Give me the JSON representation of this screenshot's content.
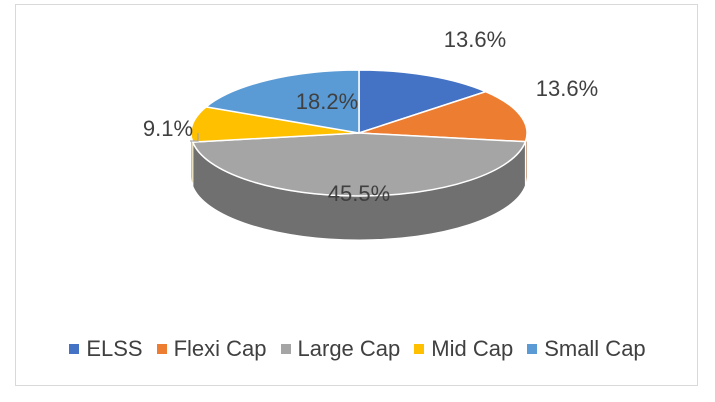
{
  "chart_data": {
    "type": "pie",
    "style": "3d",
    "title": "",
    "categories": [
      "ELSS",
      "Flexi Cap",
      "Large Cap",
      "Mid Cap",
      "Small Cap"
    ],
    "values": [
      13.6,
      13.6,
      45.5,
      9.1,
      18.2
    ],
    "labels": [
      "13.6%",
      "13.6%",
      "45.5%",
      "9.1%",
      "18.2%"
    ],
    "colors": [
      "#4472C4",
      "#ED7D31",
      "#A5A5A5",
      "#FFC000",
      "#5B9BD5"
    ],
    "legend_position": "bottom"
  },
  "legend": {
    "items": [
      {
        "label": "ELSS",
        "color": "#4472C4"
      },
      {
        "label": "Flexi Cap",
        "color": "#ED7D31"
      },
      {
        "label": "Large Cap",
        "color": "#A5A5A5"
      },
      {
        "label": "Mid Cap",
        "color": "#FFC000"
      },
      {
        "label": "Small Cap",
        "color": "#5B9BD5"
      }
    ]
  }
}
